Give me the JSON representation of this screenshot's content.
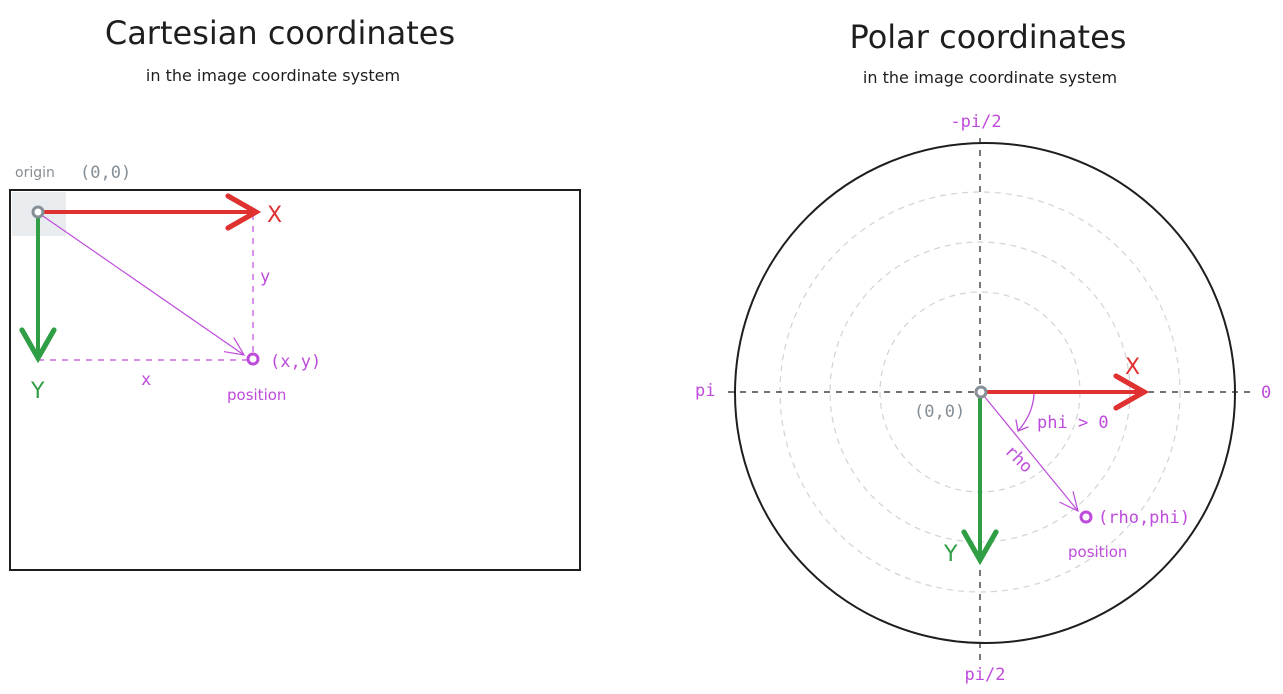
{
  "colors": {
    "ink": "#1e1e1e",
    "x_axis": "#e03131",
    "y_axis": "#2f9e44",
    "annotation": "#be4bdb",
    "muted": "#868e96",
    "grid": "#ced4da",
    "highlight": "#e9ecef"
  },
  "cartesian": {
    "title": "Cartesian coordinates",
    "subtitle": "in the image coordinate system",
    "origin_label": "origin",
    "origin_coords": "(0,0)",
    "x_axis_label": "X",
    "y_axis_label": "Y",
    "x_dim_label": "x",
    "y_dim_label": "y",
    "point_label": "(x,y)",
    "point_caption": "position"
  },
  "polar": {
    "title": "Polar coordinates",
    "subtitle": "in the image coordinate system",
    "top_label": "-pi/2",
    "bottom_label": "pi/2",
    "left_label": "pi",
    "right_label": "0",
    "origin_coords": "(0,0)",
    "x_axis_label": "X",
    "y_axis_label": "Y",
    "angle_label": "phi > 0",
    "radius_label": "rho",
    "point_label": "(rho,phi)",
    "point_caption": "position"
  }
}
